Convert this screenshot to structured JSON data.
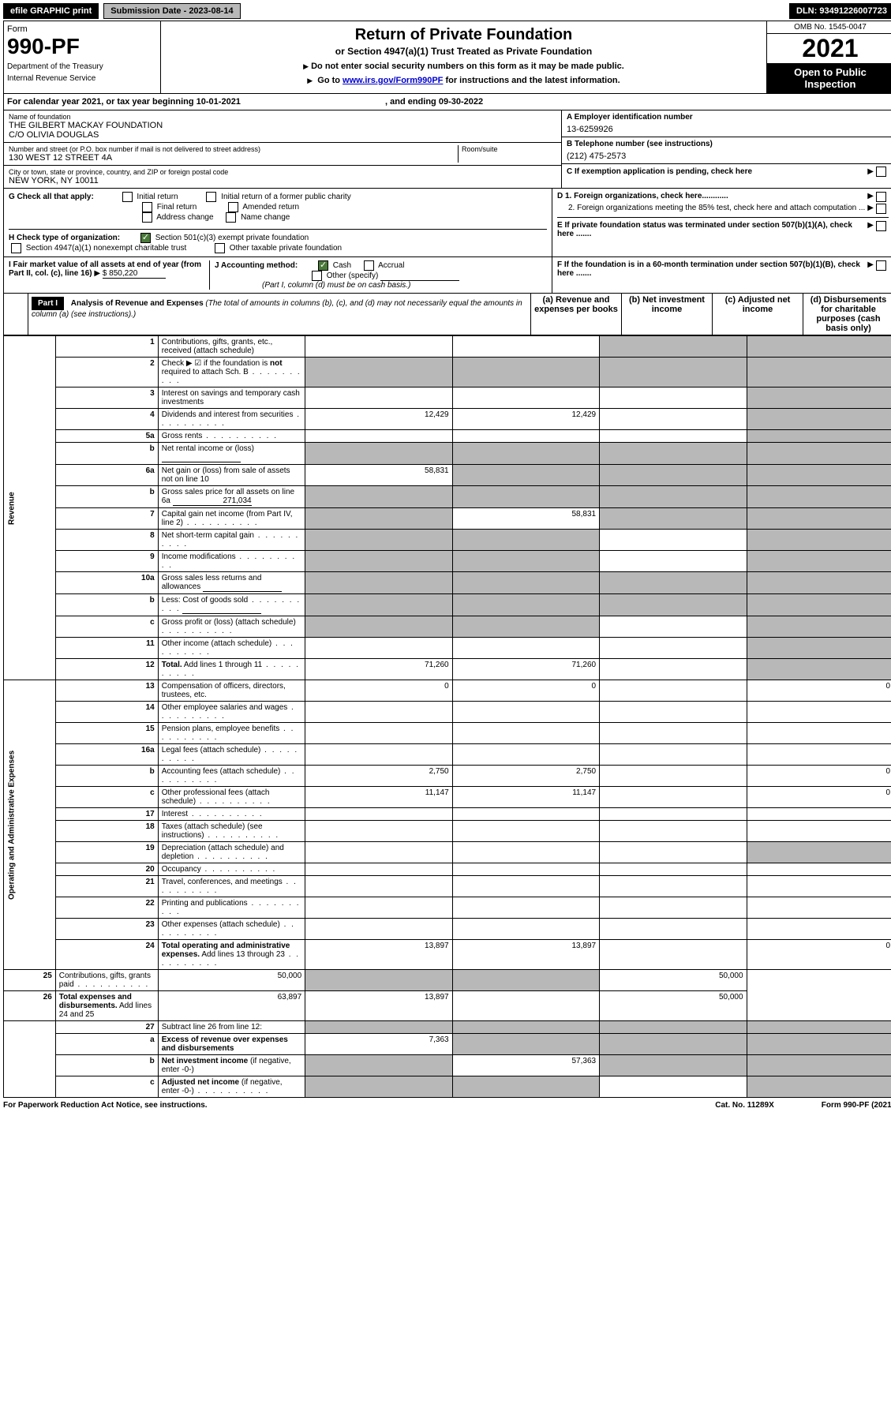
{
  "topbar": {
    "efile": "efile GRAPHIC print",
    "submission_label": "Submission Date - 2023-08-14",
    "dln": "DLN: 93491226007723"
  },
  "header": {
    "form_label": "Form",
    "form_number": "990-PF",
    "dept1": "Department of the Treasury",
    "dept2": "Internal Revenue Service",
    "title": "Return of Private Foundation",
    "subtitle": "or Section 4947(a)(1) Trust Treated as Private Foundation",
    "note1": "Do not enter social security numbers on this form as it may be made public.",
    "note2_pre": "Go to ",
    "note2_link": "www.irs.gov/Form990PF",
    "note2_post": " for instructions and the latest information.",
    "omb": "OMB No. 1545-0047",
    "year": "2021",
    "otp": "Open to Public Inspection"
  },
  "cal": {
    "text_pre": "For calendar year 2021, or tax year beginning ",
    "begin": "10-01-2021",
    "mid": " , and ending ",
    "end": "09-30-2022"
  },
  "org": {
    "name_label": "Name of foundation",
    "name1": "THE GILBERT MACKAY FOUNDATION",
    "name2": "C/O OLIVIA DOUGLAS",
    "addr_label": "Number and street (or P.O. box number if mail is not delivered to street address)",
    "addr": "130 WEST 12 STREET 4A",
    "room_label": "Room/suite",
    "city_label": "City or town, state or province, country, and ZIP or foreign postal code",
    "city": "NEW YORK, NY  10011",
    "a_label": "A Employer identification number",
    "a_val": "13-6259926",
    "b_label": "B Telephone number (see instructions)",
    "b_val": "(212) 475-2573",
    "c_label": "C If exemption application is pending, check here"
  },
  "g": {
    "label": "G Check all that apply:",
    "opts": [
      "Initial return",
      "Initial return of a former public charity",
      "Final return",
      "Amended return",
      "Address change",
      "Name change"
    ]
  },
  "h": {
    "label": "H Check type of organization:",
    "opt1": "Section 501(c)(3) exempt private foundation",
    "opt2": "Section 4947(a)(1) nonexempt charitable trust",
    "opt3": "Other taxable private foundation"
  },
  "d": {
    "d1": "D 1. Foreign organizations, check here............",
    "d2": "2. Foreign organizations meeting the 85% test, check here and attach computation ...",
    "e": "E  If private foundation status was terminated under section 507(b)(1)(A), check here .......",
    "f": "F  If the foundation is in a 60-month termination under section 507(b)(1)(B), check here ......."
  },
  "i": {
    "label": "I Fair market value of all assets at end of year (from Part II, col. (c), line 16)",
    "val": "$  850,220"
  },
  "j": {
    "label": "J Accounting method:",
    "cash": "Cash",
    "accrual": "Accrual",
    "other": "Other (specify)",
    "note": "(Part I, column (d) must be on cash basis.)"
  },
  "part1": {
    "hdr": "Part I",
    "title": "Analysis of Revenue and Expenses",
    "title_note": "(The total of amounts in columns (b), (c), and (d) may not necessarily equal the amounts in column (a) (see instructions).)",
    "col_a": "(a)   Revenue and expenses per books",
    "col_b": "(b)   Net investment income",
    "col_c": "(c)   Adjusted net income",
    "col_d": "(d)   Disbursements for charitable purposes (cash basis only)",
    "side_rev": "Revenue",
    "side_exp": "Operating and Administrative Expenses"
  },
  "rows": [
    {
      "n": "1",
      "t": "Contributions, gifts, grants, etc., received (attach schedule)",
      "a": "",
      "b": "",
      "c": "g",
      "d": "g"
    },
    {
      "n": "2",
      "t": "Check ▶ ☑ if the foundation is <b>not</b> required to attach Sch. B",
      "dots": true,
      "a": "g",
      "b": "g",
      "c": "g",
      "d": "g"
    },
    {
      "n": "3",
      "t": "Interest on savings and temporary cash investments",
      "a": "",
      "b": "",
      "c": "",
      "d": "g"
    },
    {
      "n": "4",
      "t": "Dividends and interest from securities",
      "dots": true,
      "a": "12,429",
      "b": "12,429",
      "c": "",
      "d": "g"
    },
    {
      "n": "5a",
      "t": "Gross rents",
      "dots": true,
      "a": "",
      "b": "",
      "c": "",
      "d": "g"
    },
    {
      "n": "b",
      "t": "Net rental income or (loss)",
      "a": "g",
      "b": "g",
      "c": "g",
      "d": "g",
      "inline": true
    },
    {
      "n": "6a",
      "t": "Net gain or (loss) from sale of assets not on line 10",
      "a": "58,831",
      "b": "g",
      "c": "g",
      "d": "g"
    },
    {
      "n": "b",
      "t": "Gross sales price for all assets on line 6a",
      "inline_val": "271,034",
      "a": "g",
      "b": "g",
      "c": "g",
      "d": "g"
    },
    {
      "n": "7",
      "t": "Capital gain net income (from Part IV, line 2)",
      "dots": true,
      "a": "g",
      "b": "58,831",
      "c": "g",
      "d": "g"
    },
    {
      "n": "8",
      "t": "Net short-term capital gain",
      "dots": true,
      "a": "g",
      "b": "g",
      "c": "",
      "d": "g"
    },
    {
      "n": "9",
      "t": "Income modifications",
      "dots": true,
      "a": "g",
      "b": "g",
      "c": "",
      "d": "g"
    },
    {
      "n": "10a",
      "t": "Gross sales less returns and allowances",
      "inline": true,
      "a": "g",
      "b": "g",
      "c": "g",
      "d": "g"
    },
    {
      "n": "b",
      "t": "Less: Cost of goods sold",
      "dots": true,
      "inline": true,
      "a": "g",
      "b": "g",
      "c": "g",
      "d": "g"
    },
    {
      "n": "c",
      "t": "Gross profit or (loss) (attach schedule)",
      "dots": true,
      "a": "g",
      "b": "g",
      "c": "",
      "d": "g"
    },
    {
      "n": "11",
      "t": "Other income (attach schedule)",
      "dots": true,
      "a": "",
      "b": "",
      "c": "",
      "d": "g"
    },
    {
      "n": "12",
      "t": "<b>Total.</b> Add lines 1 through 11",
      "dots": true,
      "a": "71,260",
      "b": "71,260",
      "c": "",
      "d": "g"
    },
    {
      "n": "13",
      "t": "Compensation of officers, directors, trustees, etc.",
      "a": "0",
      "b": "0",
      "c": "",
      "d": "0",
      "sec": "exp"
    },
    {
      "n": "14",
      "t": "Other employee salaries and wages",
      "dots": true,
      "a": "",
      "b": "",
      "c": "",
      "d": ""
    },
    {
      "n": "15",
      "t": "Pension plans, employee benefits",
      "dots": true,
      "a": "",
      "b": "",
      "c": "",
      "d": ""
    },
    {
      "n": "16a",
      "t": "Legal fees (attach schedule)",
      "dots": true,
      "a": "",
      "b": "",
      "c": "",
      "d": ""
    },
    {
      "n": "b",
      "t": "Accounting fees (attach schedule)",
      "dots": true,
      "a": "2,750",
      "b": "2,750",
      "c": "",
      "d": "0"
    },
    {
      "n": "c",
      "t": "Other professional fees (attach schedule)",
      "dots": true,
      "a": "11,147",
      "b": "11,147",
      "c": "",
      "d": "0"
    },
    {
      "n": "17",
      "t": "Interest",
      "dots": true,
      "a": "",
      "b": "",
      "c": "",
      "d": ""
    },
    {
      "n": "18",
      "t": "Taxes (attach schedule) (see instructions)",
      "dots": true,
      "a": "",
      "b": "",
      "c": "",
      "d": ""
    },
    {
      "n": "19",
      "t": "Depreciation (attach schedule) and depletion",
      "dots": true,
      "a": "",
      "b": "",
      "c": "",
      "d": "g"
    },
    {
      "n": "20",
      "t": "Occupancy",
      "dots": true,
      "a": "",
      "b": "",
      "c": "",
      "d": ""
    },
    {
      "n": "21",
      "t": "Travel, conferences, and meetings",
      "dots": true,
      "a": "",
      "b": "",
      "c": "",
      "d": ""
    },
    {
      "n": "22",
      "t": "Printing and publications",
      "dots": true,
      "a": "",
      "b": "",
      "c": "",
      "d": ""
    },
    {
      "n": "23",
      "t": "Other expenses (attach schedule)",
      "dots": true,
      "a": "",
      "b": "",
      "c": "",
      "d": ""
    },
    {
      "n": "24",
      "t": "<b>Total operating and administrative expenses.</b> Add lines 13 through 23",
      "dots": true,
      "a": "13,897",
      "b": "13,897",
      "c": "",
      "d": "0"
    },
    {
      "n": "25",
      "t": "Contributions, gifts, grants paid",
      "dots": true,
      "a": "50,000",
      "b": "g",
      "c": "g",
      "d": "50,000"
    },
    {
      "n": "26",
      "t": "<b>Total expenses and disbursements.</b> Add lines 24 and 25",
      "a": "63,897",
      "b": "13,897",
      "c": "",
      "d": "50,000"
    },
    {
      "n": "27",
      "t": "Subtract line 26 from line 12:",
      "a": "g",
      "b": "g",
      "c": "g",
      "d": "g",
      "sec": "bot"
    },
    {
      "n": "a",
      "t": "<b>Excess of revenue over expenses and disbursements</b>",
      "a": "7,363",
      "b": "g",
      "c": "g",
      "d": "g"
    },
    {
      "n": "b",
      "t": "<b>Net investment income</b> (if negative, enter -0-)",
      "a": "g",
      "b": "57,363",
      "c": "g",
      "d": "g"
    },
    {
      "n": "c",
      "t": "<b>Adjusted net income</b> (if negative, enter -0-)",
      "dots": true,
      "a": "g",
      "b": "g",
      "c": "",
      "d": "g"
    }
  ],
  "footer": {
    "left": "For Paperwork Reduction Act Notice, see instructions.",
    "mid": "Cat. No. 11289X",
    "right": "Form 990-PF (2021)"
  }
}
